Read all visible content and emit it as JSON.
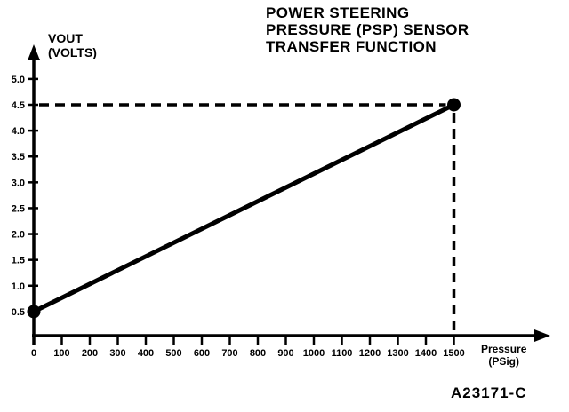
{
  "title": {
    "lines": [
      "POWER STEERING",
      "PRESSURE (PSP) SENSOR",
      "TRANSFER FUNCTION"
    ]
  },
  "y_axis_label": {
    "lines": [
      "VOUT",
      "(VOLTS)"
    ]
  },
  "x_axis_label": {
    "lines": [
      "Pressure",
      "(PSig)"
    ]
  },
  "figure_id": "A23171-C",
  "colors": {
    "ink": "#000000",
    "background": "#ffffff"
  },
  "chart_data": {
    "type": "line",
    "title": "POWER STEERING PRESSURE (PSP) SENSOR TRANSFER FUNCTION",
    "xlabel": "Pressure (PSig)",
    "ylabel": "VOUT (VOLTS)",
    "xlim": [
      0,
      1500
    ],
    "ylim": [
      0,
      5.0
    ],
    "x_ticks": [
      0,
      100,
      200,
      300,
      400,
      500,
      600,
      700,
      800,
      900,
      1000,
      1100,
      1200,
      1300,
      1400,
      1500
    ],
    "y_ticks": [
      0.5,
      1.0,
      1.5,
      2.0,
      2.5,
      3.0,
      3.5,
      4.0,
      4.5,
      5.0
    ],
    "grid": false,
    "legend": false,
    "series": [
      {
        "name": "psp-transfer-function",
        "marker": "filled-circle",
        "points": [
          [
            0,
            0.5
          ],
          [
            1500,
            4.5
          ]
        ]
      }
    ],
    "reference_lines": [
      {
        "orientation": "horizontal",
        "style": "dashed",
        "y": 4.5,
        "x_start": 0,
        "x_end": 1500
      },
      {
        "orientation": "vertical",
        "style": "dashed",
        "x": 1500,
        "y_start": 0,
        "y_end": 4.5
      }
    ]
  }
}
